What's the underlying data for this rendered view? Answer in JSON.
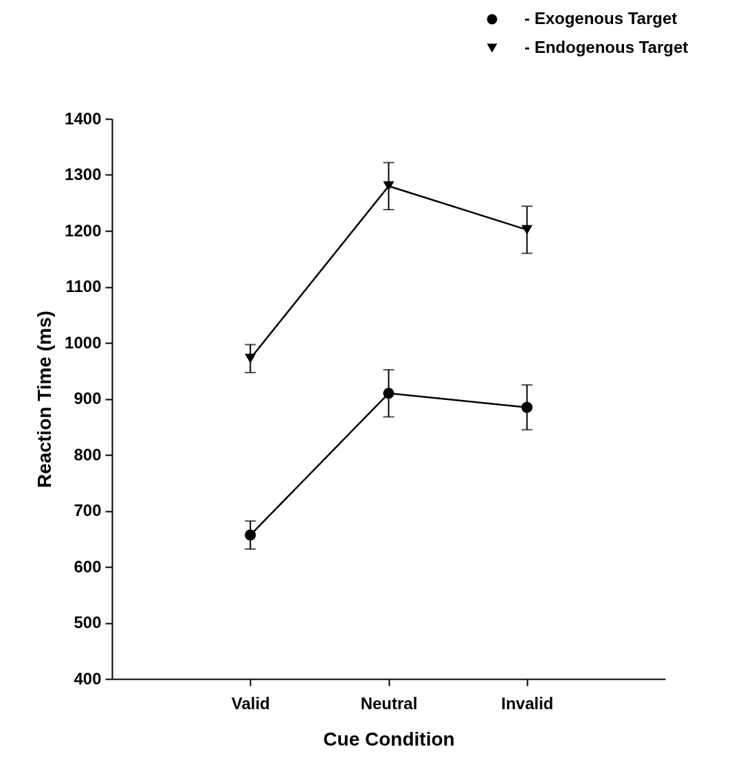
{
  "chart_data": {
    "type": "line",
    "xlabel": "Cue Condition",
    "ylabel": "Reaction Time (ms)",
    "categories": [
      "Valid",
      "Neutral",
      "Invalid"
    ],
    "series": [
      {
        "name": "- Exogenous Target",
        "color": "#000000",
        "marker": "circle",
        "values": [
          657,
          910,
          885
        ],
        "errors": [
          25,
          42,
          40
        ]
      },
      {
        "name": "- Endogenous Target",
        "color": "#000000",
        "marker": "triangle",
        "values": [
          972,
          1280,
          1202
        ],
        "errors": [
          25,
          42,
          42
        ]
      }
    ],
    "ylim": [
      400,
      1400
    ],
    "yticks": [
      400,
      500,
      600,
      700,
      800,
      900,
      {
        "value": 1000,
        "label": "1000"
      },
      {
        "value": 1100,
        "label": "1100"
      },
      {
        "value": 1200,
        "label": "1200"
      },
      {
        "value": 1300,
        "label": "1300"
      },
      {
        "value": 1400,
        "label": "1400"
      }
    ],
    "grid": false,
    "legend": "top right",
    "line_style": "solid"
  }
}
